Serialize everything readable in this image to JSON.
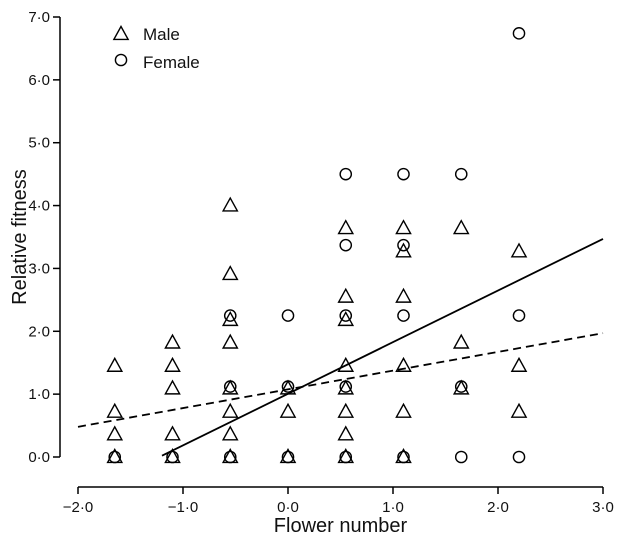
{
  "chart_data": {
    "type": "scatter",
    "xlabel": "Flower number",
    "ylabel": "Relative fitness",
    "xlim": [
      -2.0,
      3.0
    ],
    "ylim": [
      0.0,
      7.0
    ],
    "x_ticks": [
      -2.0,
      -1.0,
      0.0,
      1.0,
      2.0,
      3.0
    ],
    "x_tick_labels": [
      "−2·0",
      "−1·0",
      "0·0",
      "1·0",
      "2·0",
      "3·0"
    ],
    "y_ticks": [
      0,
      1,
      2,
      3,
      4,
      5,
      6,
      7
    ],
    "y_tick_labels": [
      "0·0",
      "1·0",
      "2·0",
      "3·0",
      "4·0",
      "5·0",
      "6·0",
      "7·0"
    ],
    "grid": false,
    "legend_position": "top-left",
    "series": [
      {
        "name": "Male",
        "marker": "triangle",
        "points": [
          [
            -1.65,
            1.45
          ],
          [
            -1.65,
            0.72
          ],
          [
            -1.65,
            0.36
          ],
          [
            -1.65,
            0.0
          ],
          [
            -1.1,
            1.82
          ],
          [
            -1.1,
            1.45
          ],
          [
            -1.1,
            1.09
          ],
          [
            -1.1,
            0.36
          ],
          [
            -1.1,
            0.0
          ],
          [
            -0.55,
            4.0
          ],
          [
            -0.55,
            2.91
          ],
          [
            -0.55,
            2.18
          ],
          [
            -0.55,
            1.82
          ],
          [
            -0.55,
            1.09
          ],
          [
            -0.55,
            0.72
          ],
          [
            -0.55,
            0.36
          ],
          [
            -0.55,
            0.0
          ],
          [
            0.0,
            1.09
          ],
          [
            0.0,
            0.72
          ],
          [
            0.0,
            0.0
          ],
          [
            0.55,
            3.64
          ],
          [
            0.55,
            2.55
          ],
          [
            0.55,
            2.18
          ],
          [
            0.55,
            1.45
          ],
          [
            0.55,
            1.09
          ],
          [
            0.55,
            0.72
          ],
          [
            0.55,
            0.36
          ],
          [
            0.55,
            0.0
          ],
          [
            1.1,
            3.64
          ],
          [
            1.1,
            3.27
          ],
          [
            1.1,
            2.55
          ],
          [
            1.1,
            1.45
          ],
          [
            1.1,
            0.72
          ],
          [
            1.1,
            0.0
          ],
          [
            1.65,
            3.64
          ],
          [
            1.65,
            1.82
          ],
          [
            1.65,
            1.09
          ],
          [
            2.2,
            3.27
          ],
          [
            2.2,
            1.45
          ],
          [
            2.2,
            0.72
          ]
        ]
      },
      {
        "name": "Female",
        "marker": "circle",
        "points": [
          [
            -1.65,
            0.0
          ],
          [
            -1.1,
            0.0
          ],
          [
            -0.55,
            2.25
          ],
          [
            -0.55,
            1.12
          ],
          [
            -0.55,
            0.0
          ],
          [
            0.0,
            2.25
          ],
          [
            0.0,
            1.12
          ],
          [
            0.0,
            0.0
          ],
          [
            0.55,
            4.5
          ],
          [
            0.55,
            3.37
          ],
          [
            0.55,
            2.25
          ],
          [
            0.55,
            1.12
          ],
          [
            0.55,
            0.0
          ],
          [
            1.1,
            4.5
          ],
          [
            1.1,
            3.37
          ],
          [
            1.1,
            2.25
          ],
          [
            1.1,
            0.0
          ],
          [
            1.65,
            4.5
          ],
          [
            1.65,
            1.12
          ],
          [
            1.65,
            0.0
          ],
          [
            2.2,
            6.74
          ],
          [
            2.2,
            2.25
          ],
          [
            2.2,
            0.0
          ]
        ]
      }
    ],
    "fit_lines": [
      {
        "style": "solid",
        "x": [
          -1.2,
          3.0
        ],
        "y": [
          0.02,
          3.47
        ]
      },
      {
        "style": "dashed",
        "x": [
          -2.0,
          3.0
        ],
        "y": [
          0.48,
          1.97
        ]
      }
    ]
  }
}
